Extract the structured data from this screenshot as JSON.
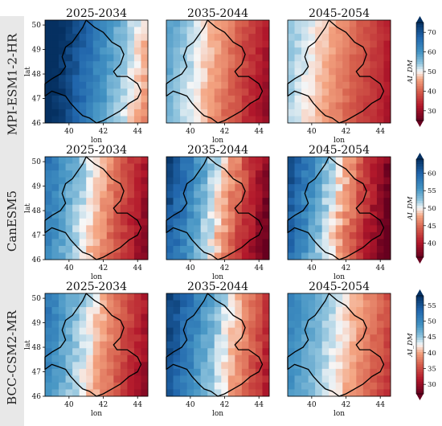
{
  "chart_data": [
    {
      "type": "heatmap",
      "row_label": "MPI-ESM1-2-HR",
      "panels": [
        {
          "title": "2025-2034",
          "xlabel": "lon",
          "ylabel": "lat",
          "xticks": [
            "40",
            "42",
            "44"
          ],
          "yticks": [
            "46",
            "47",
            "48",
            "49",
            "50"
          ],
          "west": 79,
          "east": 45
        },
        {
          "title": "2035-2044",
          "xlabel": "lon",
          "xticks": [
            "40",
            "42",
            "44"
          ],
          "west": 58,
          "east": 30
        },
        {
          "title": "2045-2054",
          "xlabel": "lon",
          "xticks": [
            "40",
            "42",
            "44"
          ],
          "west": 54,
          "east": 32
        }
      ],
      "colorbar": {
        "label": "AI_DM",
        "ticks": [
          "30",
          "40",
          "50",
          "60",
          "70"
        ],
        "vmin": 25,
        "vmax": 75
      }
    },
    {
      "type": "heatmap",
      "row_label": "CanESM5",
      "panels": [
        {
          "title": "2025-2034",
          "xlabel": "lon",
          "ylabel": "lat",
          "xticks": [
            "40",
            "42",
            "44"
          ],
          "yticks": [
            "46",
            "47",
            "48",
            "49",
            "50"
          ],
          "west": 58,
          "east": 38
        },
        {
          "title": "2035-2044",
          "xlabel": "lon",
          "xticks": [
            "40",
            "42",
            "44"
          ],
          "west": 62,
          "east": 36
        },
        {
          "title": "2045-2054",
          "xlabel": "lon",
          "xticks": [
            "40",
            "42",
            "44"
          ],
          "west": 61,
          "east": 35
        }
      ],
      "colorbar": {
        "label": "AI_DM",
        "ticks": [
          "40",
          "45",
          "50",
          "55",
          "60"
        ],
        "vmin": 36,
        "vmax": 64
      }
    },
    {
      "type": "heatmap",
      "row_label": "BCC-CSM2-MR",
      "panels": [
        {
          "title": "2025-2034",
          "xlabel": "lon",
          "ylabel": "lat",
          "xticks": [
            "40",
            "42",
            "44"
          ],
          "yticks": [
            "46",
            "47",
            "48",
            "49",
            "50"
          ],
          "west": 51,
          "east": 30
        },
        {
          "title": "2035-2044",
          "xlabel": "lon",
          "xticks": [
            "40",
            "42",
            "44"
          ],
          "west": 56,
          "east": 32
        },
        {
          "title": "2045-2054",
          "xlabel": "lon",
          "xticks": [
            "40",
            "42",
            "44"
          ],
          "west": 50,
          "east": 34
        }
      ],
      "colorbar": {
        "label": "AI_DM",
        "ticks": [
          "30",
          "35",
          "40",
          "45",
          "50",
          "55"
        ],
        "vmin": 27,
        "vmax": 58
      }
    }
  ]
}
